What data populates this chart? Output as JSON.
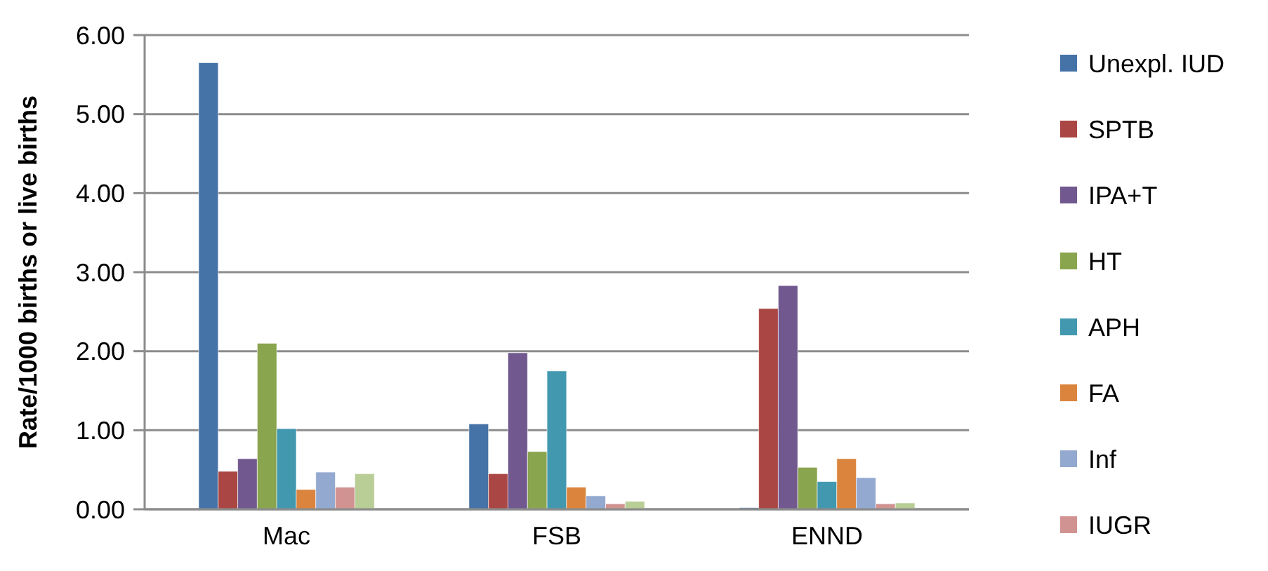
{
  "chart_data": {
    "type": "bar",
    "ylabel": "Rate/1000 births or live births",
    "categories": [
      "Mac",
      "FSB",
      "ENND"
    ],
    "series": [
      {
        "name": "Unexpl. IUD",
        "color": "#4572a7",
        "values": [
          5.65,
          1.08,
          0.02
        ]
      },
      {
        "name": "SPTB",
        "color": "#aa4643",
        "values": [
          0.48,
          0.45,
          2.54
        ]
      },
      {
        "name": "IPA+T",
        "color": "#71588f",
        "values": [
          0.64,
          1.98,
          2.83
        ]
      },
      {
        "name": "HT",
        "color": "#89a54e",
        "values": [
          2.1,
          0.73,
          0.53
        ]
      },
      {
        "name": "APH",
        "color": "#4198af",
        "values": [
          1.02,
          1.75,
          0.35
        ]
      },
      {
        "name": "FA",
        "color": "#db843d",
        "values": [
          0.25,
          0.28,
          0.64
        ]
      },
      {
        "name": "Inf",
        "color": "#93a9cf",
        "values": [
          0.47,
          0.17,
          0.4
        ]
      },
      {
        "name": "IUGR",
        "color": "#d19392",
        "values": [
          0.28,
          0.07,
          0.07
        ]
      },
      {
        "color": "#b9cd96",
        "values": [
          0.45,
          0.1,
          0.08
        ]
      }
    ],
    "ylim": [
      0,
      6
    ],
    "yticks": [
      {
        "value": 0,
        "label": "0.00"
      },
      {
        "value": 1,
        "label": "1.00"
      },
      {
        "value": 2,
        "label": "2.00"
      },
      {
        "value": 3,
        "label": "3.00"
      },
      {
        "value": 4,
        "label": "4.00"
      },
      {
        "value": 5,
        "label": "5.00"
      },
      {
        "value": 6,
        "label": "6.00"
      }
    ],
    "grid": "y",
    "legend": "right"
  }
}
